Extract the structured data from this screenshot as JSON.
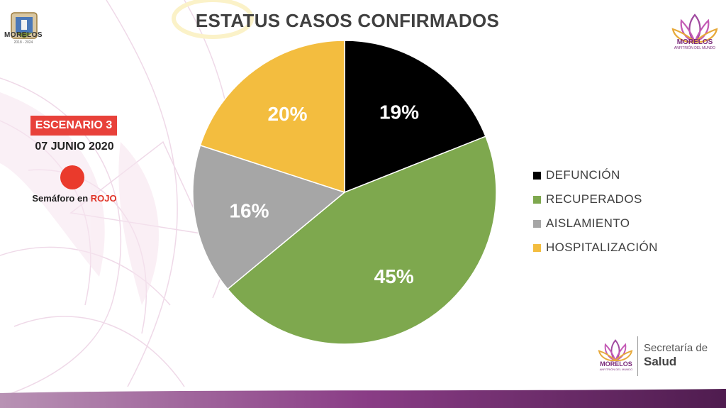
{
  "header": {
    "title": "ESTATUS CASOS CONFIRMADOS",
    "coat_label": "MORELOS",
    "coat_years": "2018 - 2024"
  },
  "info": {
    "scenario": "ESCENARIO 3",
    "date": "07 JUNIO 2020",
    "semaforo_prefix": "Semáforo en ",
    "semaforo_color_word": "ROJO",
    "semaforo_color": "#ea3a2c"
  },
  "logos": {
    "top_right_name": "MORELOS",
    "top_right_sub": "ANFITRIÓN DEL MUNDO",
    "bottom_name": "MORELOS",
    "bottom_sub": "ANFITRIÓN DEL MUNDO",
    "secretaria_line1": "Secretaría de",
    "secretaria_line2": "Salud"
  },
  "chart_data": {
    "type": "pie",
    "title": "ESTATUS CASOS CONFIRMADOS",
    "legend_position": "right",
    "categories": [
      "DEFUNCIÓN",
      "RECUPERADOS",
      "AISLAMIENTO",
      "HOSPITALIZACIÓN"
    ],
    "values": [
      19,
      45,
      16,
      20
    ],
    "labels": [
      "19%",
      "45%",
      "16%",
      "20%"
    ],
    "colors": [
      "#000000",
      "#7ea84e",
      "#a6a6a6",
      "#f3bd3f"
    ]
  }
}
